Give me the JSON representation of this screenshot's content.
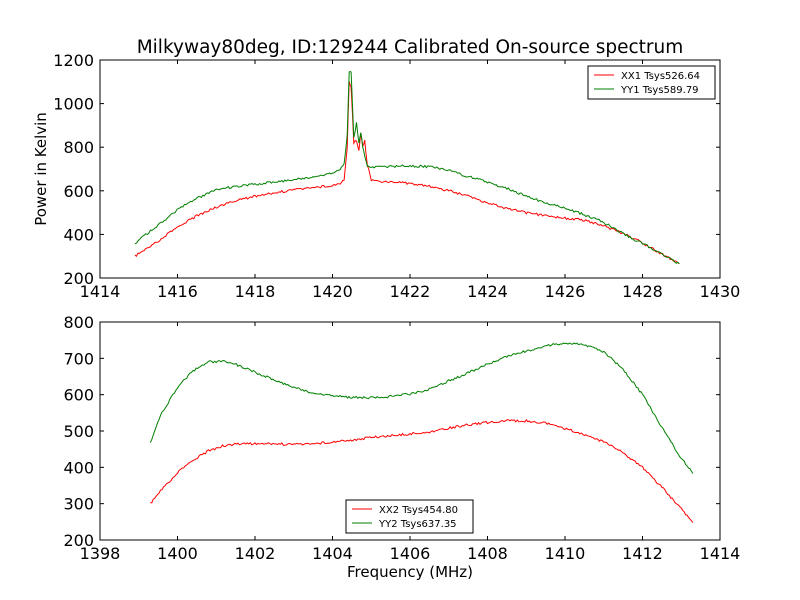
{
  "figure": {
    "title": "Milkyway80deg, ID:129244 Calibrated On-source spectrum"
  },
  "chart_data": [
    {
      "type": "line",
      "title": "Milkyway80deg, ID:129244 Calibrated On-source spectrum",
      "xlabel": "",
      "ylabel": "Power in Kelvin",
      "xlim": [
        1414,
        1430
      ],
      "ylim": [
        200,
        1200
      ],
      "xticks": [
        1414,
        1416,
        1418,
        1420,
        1422,
        1424,
        1426,
        1428,
        1430
      ],
      "yticks": [
        200,
        400,
        600,
        800,
        1000,
        1200
      ],
      "xtick_labels": [
        "1414",
        "1416",
        "1418",
        "1420",
        "1422",
        "1424",
        "1426",
        "1428",
        "1430"
      ],
      "ytick_labels": [
        "200",
        "400",
        "600",
        "800",
        "1000",
        "1200"
      ],
      "grid": false,
      "legend_position": "top-right",
      "series": [
        {
          "name": "XX1 Tsys526.64",
          "color": "#ff0000",
          "x": [
            1414.9,
            1415.3,
            1415.7,
            1416.1,
            1416.5,
            1417.0,
            1417.5,
            1418.0,
            1418.5,
            1419.0,
            1419.5,
            1420.0,
            1420.2,
            1420.3,
            1420.38,
            1420.43,
            1420.48,
            1420.55,
            1420.62,
            1420.68,
            1420.73,
            1420.78,
            1420.83,
            1420.9,
            1421.0,
            1421.3,
            1422.0,
            1422.5,
            1423.0,
            1423.5,
            1424.0,
            1424.5,
            1425.0,
            1425.5,
            1426.0,
            1426.5,
            1427.0,
            1427.4,
            1427.8,
            1428.2,
            1428.6,
            1428.95
          ],
          "y": [
            300,
            345,
            395,
            445,
            485,
            525,
            555,
            575,
            590,
            605,
            615,
            625,
            635,
            650,
            800,
            1100,
            1080,
            820,
            830,
            790,
            860,
            800,
            830,
            720,
            650,
            640,
            635,
            620,
            600,
            575,
            545,
            520,
            500,
            485,
            475,
            465,
            440,
            410,
            380,
            340,
            300,
            265
          ]
        },
        {
          "name": "YY1 Tsys589.79",
          "color": "#008000",
          "x": [
            1414.9,
            1415.3,
            1415.7,
            1416.1,
            1416.5,
            1417.0,
            1417.5,
            1418.0,
            1418.5,
            1419.0,
            1419.5,
            1420.0,
            1420.2,
            1420.3,
            1420.38,
            1420.43,
            1420.48,
            1420.55,
            1420.62,
            1420.68,
            1420.73,
            1420.78,
            1420.83,
            1420.9,
            1421.0,
            1421.3,
            1422.0,
            1422.5,
            1423.0,
            1423.5,
            1424.0,
            1424.5,
            1425.0,
            1425.5,
            1426.0,
            1426.5,
            1427.0,
            1427.4,
            1427.8,
            1428.2,
            1428.6,
            1428.95
          ],
          "y": [
            360,
            415,
            470,
            525,
            565,
            605,
            620,
            630,
            640,
            650,
            665,
            680,
            700,
            720,
            850,
            1150,
            1140,
            840,
            910,
            820,
            870,
            800,
            760,
            715,
            710,
            710,
            715,
            710,
            695,
            665,
            640,
            610,
            575,
            545,
            520,
            490,
            455,
            415,
            375,
            340,
            300,
            265
          ]
        }
      ]
    },
    {
      "type": "line",
      "title": "",
      "xlabel": "Frequency (MHz)",
      "ylabel": "",
      "xlim": [
        1398,
        1414
      ],
      "ylim": [
        200,
        800
      ],
      "xticks": [
        1398,
        1400,
        1402,
        1404,
        1406,
        1408,
        1410,
        1412,
        1414
      ],
      "yticks": [
        200,
        300,
        400,
        500,
        600,
        700,
        800
      ],
      "xtick_labels": [
        "1398",
        "1400",
        "1402",
        "1404",
        "1406",
        "1408",
        "1410",
        "1412",
        "1414"
      ],
      "ytick_labels": [
        "200",
        "300",
        "400",
        "500",
        "600",
        "700",
        "800"
      ],
      "grid": false,
      "legend_position": "bottom-center",
      "series": [
        {
          "name": "XX2 Tsys454.80",
          "color": "#ff0000",
          "x": [
            1399.3,
            1399.6,
            1400.0,
            1400.4,
            1400.8,
            1401.2,
            1401.6,
            1402.0,
            1402.5,
            1403.0,
            1403.5,
            1404.0,
            1404.5,
            1405.0,
            1405.5,
            1406.0,
            1406.5,
            1407.0,
            1407.5,
            1408.0,
            1408.5,
            1409.0,
            1409.5,
            1410.0,
            1410.5,
            1411.0,
            1411.5,
            1412.0,
            1412.5,
            1413.0,
            1413.3
          ],
          "y": [
            300,
            340,
            385,
            420,
            445,
            460,
            465,
            465,
            465,
            463,
            465,
            470,
            475,
            482,
            487,
            492,
            498,
            508,
            517,
            524,
            528,
            528,
            522,
            507,
            490,
            470,
            440,
            400,
            345,
            285,
            248
          ]
        },
        {
          "name": "YY2 Tsys637.35",
          "color": "#008000",
          "x": [
            1399.3,
            1399.6,
            1400.0,
            1400.4,
            1400.8,
            1401.2,
            1401.6,
            1402.0,
            1402.5,
            1403.0,
            1403.5,
            1404.0,
            1404.5,
            1405.0,
            1405.5,
            1406.0,
            1406.5,
            1407.0,
            1407.5,
            1408.0,
            1408.5,
            1409.0,
            1409.5,
            1410.0,
            1410.5,
            1411.0,
            1411.5,
            1412.0,
            1412.5,
            1413.0,
            1413.3
          ],
          "y": [
            470,
            550,
            620,
            665,
            690,
            692,
            680,
            662,
            640,
            620,
            605,
            597,
            592,
            592,
            595,
            602,
            615,
            638,
            660,
            685,
            705,
            720,
            735,
            742,
            738,
            718,
            670,
            600,
            510,
            425,
            383
          ]
        }
      ]
    }
  ]
}
